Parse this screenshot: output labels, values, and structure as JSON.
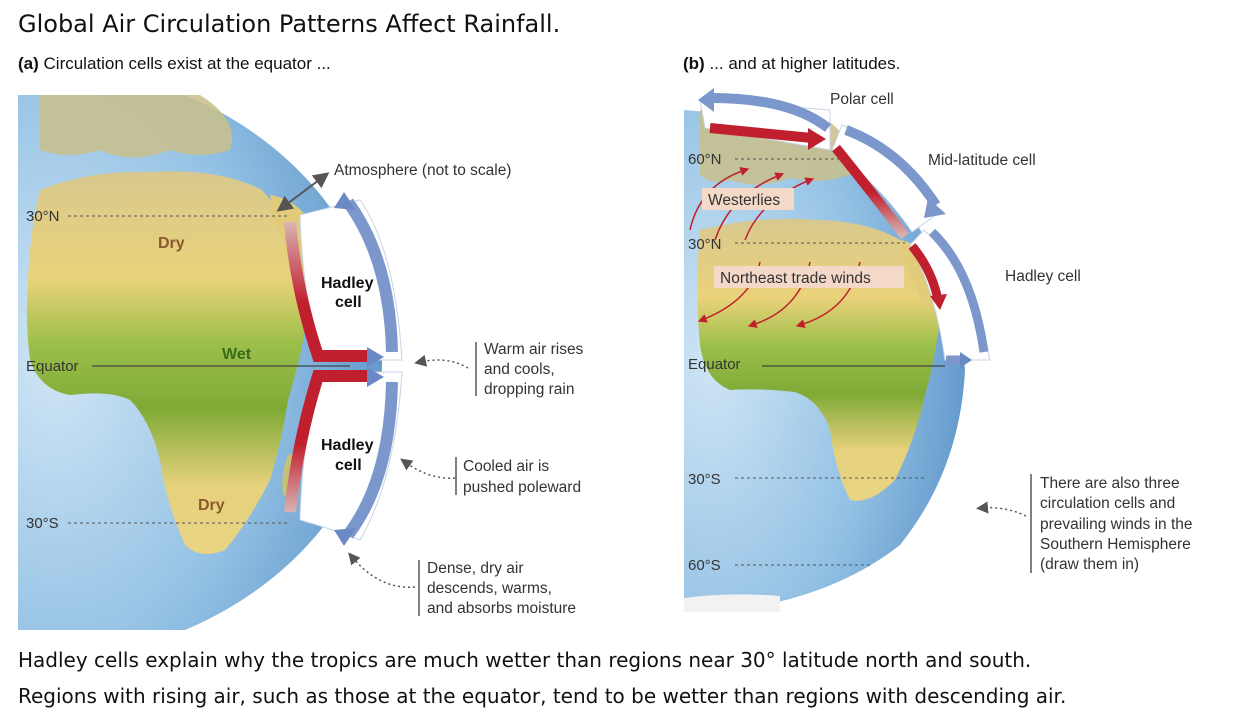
{
  "title": "Global Air Circulation Patterns Affect Rainfall.",
  "panel_a": {
    "tag": "(a)",
    "heading": "Circulation cells exist at the equator ...",
    "lat_30n": "30°N",
    "lat_equator": "Equator",
    "lat_30s": "30°S",
    "region_dry_north": "Dry",
    "region_wet": "Wet",
    "region_dry_south": "Dry",
    "cell_north": [
      "Hadley",
      "cell"
    ],
    "cell_south": [
      "Hadley",
      "cell"
    ],
    "atmosphere_label": "Atmosphere (not to scale)",
    "note_rises": [
      "Warm air rises",
      "and cools,",
      "dropping rain"
    ],
    "note_poleward": [
      "Cooled air is",
      "pushed poleward"
    ],
    "note_descends": [
      "Dense, dry air",
      "descends, warms,",
      "and absorbs moisture"
    ]
  },
  "panel_b": {
    "tag": "(b)",
    "heading": "... and at higher latitudes.",
    "lat_60n": "60°N",
    "lat_30n": "30°N",
    "lat_equator": "Equator",
    "lat_30s": "30°S",
    "lat_60s": "60°S",
    "polar_cell": "Polar cell",
    "midlat_cell": "Mid-latitude cell",
    "hadley_cell": "Hadley cell",
    "westerlies": "Westerlies",
    "trade_winds": "Northeast trade winds",
    "note_south": [
      "There are also three",
      "circulation cells and",
      "prevailing winds in the",
      "Southern Hemisphere",
      "(draw them in)"
    ]
  },
  "caption": [
    "Hadley cells explain why the tropics are much wetter than regions near 30° latitude north and south.",
    "Regions with rising air, such as those at the equator, tend to be wetter than regions with descending air."
  ],
  "colors": {
    "ocean": "#7fb4dd",
    "land_dry": "#e6cf7a",
    "land_wet": "#7fa83a",
    "warm_arrow": "#c0202e",
    "cool_arrow": "#5a7fc0"
  }
}
